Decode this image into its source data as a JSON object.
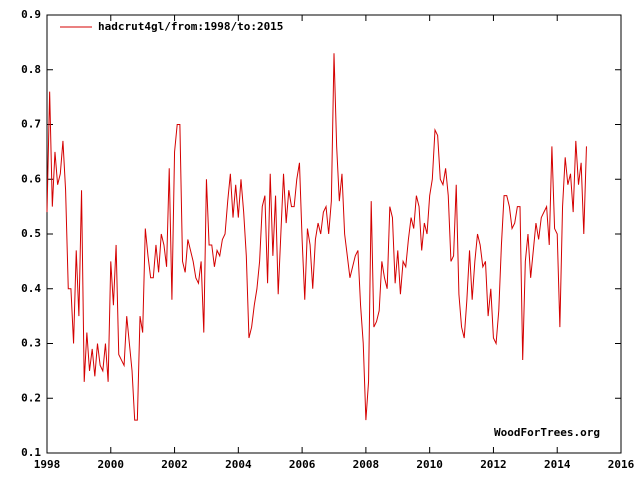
{
  "chart_data": {
    "type": "line",
    "legend": "top-left",
    "annotation": "WoodForTrees.org",
    "xlim": [
      1998,
      2016
    ],
    "xticks": [
      1998,
      2000,
      2002,
      2004,
      2006,
      2008,
      2010,
      2012,
      2014,
      2016
    ],
    "ylim": [
      0.1,
      0.9
    ],
    "yticks": [
      0.1,
      0.2,
      0.3,
      0.4,
      0.5,
      0.6,
      0.7,
      0.8,
      0.9
    ],
    "x": [
      1998,
      1998.083,
      1998.167,
      1998.25,
      1998.333,
      1998.417,
      1998.5,
      1998.583,
      1998.667,
      1998.75,
      1998.833,
      1998.917,
      1999,
      1999.083,
      1999.167,
      1999.25,
      1999.333,
      1999.417,
      1999.5,
      1999.583,
      1999.667,
      1999.75,
      1999.833,
      1999.917,
      2000,
      2000.083,
      2000.167,
      2000.25,
      2000.333,
      2000.417,
      2000.5,
      2000.583,
      2000.667,
      2000.75,
      2000.833,
      2000.917,
      2001,
      2001.083,
      2001.167,
      2001.25,
      2001.333,
      2001.417,
      2001.5,
      2001.583,
      2001.667,
      2001.75,
      2001.833,
      2001.917,
      2002,
      2002.083,
      2002.167,
      2002.25,
      2002.333,
      2002.417,
      2002.5,
      2002.583,
      2002.667,
      2002.75,
      2002.833,
      2002.917,
      2003,
      2003.083,
      2003.167,
      2003.25,
      2003.333,
      2003.417,
      2003.5,
      2003.583,
      2003.667,
      2003.75,
      2003.833,
      2003.917,
      2004,
      2004.083,
      2004.167,
      2004.25,
      2004.333,
      2004.417,
      2004.5,
      2004.583,
      2004.667,
      2004.75,
      2004.833,
      2004.917,
      2005,
      2005.083,
      2005.167,
      2005.25,
      2005.333,
      2005.417,
      2005.5,
      2005.583,
      2005.667,
      2005.75,
      2005.833,
      2005.917,
      2006,
      2006.083,
      2006.167,
      2006.25,
      2006.333,
      2006.417,
      2006.5,
      2006.583,
      2006.667,
      2006.75,
      2006.833,
      2006.917,
      2007,
      2007.083,
      2007.167,
      2007.25,
      2007.333,
      2007.417,
      2007.5,
      2007.583,
      2007.667,
      2007.75,
      2007.833,
      2007.917,
      2008,
      2008.083,
      2008.167,
      2008.25,
      2008.333,
      2008.417,
      2008.5,
      2008.583,
      2008.667,
      2008.75,
      2008.833,
      2008.917,
      2009,
      2009.083,
      2009.167,
      2009.25,
      2009.333,
      2009.417,
      2009.5,
      2009.583,
      2009.667,
      2009.75,
      2009.833,
      2009.917,
      2010,
      2010.083,
      2010.167,
      2010.25,
      2010.333,
      2010.417,
      2010.5,
      2010.583,
      2010.667,
      2010.75,
      2010.833,
      2010.917,
      2011,
      2011.083,
      2011.167,
      2011.25,
      2011.333,
      2011.417,
      2011.5,
      2011.583,
      2011.667,
      2011.75,
      2011.833,
      2011.917,
      2012,
      2012.083,
      2012.167,
      2012.25,
      2012.333,
      2012.417,
      2012.5,
      2012.583,
      2012.667,
      2012.75,
      2012.833,
      2012.917,
      2013,
      2013.083,
      2013.167,
      2013.25,
      2013.333,
      2013.417,
      2013.5,
      2013.583,
      2013.667,
      2013.75,
      2013.833,
      2013.917,
      2014,
      2014.083,
      2014.167,
      2014.25,
      2014.333,
      2014.417,
      2014.5,
      2014.583,
      2014.667,
      2014.75,
      2014.833,
      2014.917
    ],
    "series": [
      {
        "name": "hadcrut4gl/from:1998/to:2015",
        "color": "#d40000",
        "values": [
          0.54,
          0.76,
          0.55,
          0.65,
          0.59,
          0.61,
          0.67,
          0.58,
          0.4,
          0.4,
          0.3,
          0.47,
          0.35,
          0.58,
          0.23,
          0.32,
          0.25,
          0.29,
          0.24,
          0.3,
          0.26,
          0.25,
          0.3,
          0.23,
          0.45,
          0.37,
          0.48,
          0.28,
          0.27,
          0.26,
          0.35,
          0.3,
          0.25,
          0.16,
          0.16,
          0.35,
          0.32,
          0.51,
          0.46,
          0.42,
          0.42,
          0.48,
          0.43,
          0.5,
          0.48,
          0.44,
          0.62,
          0.38,
          0.65,
          0.7,
          0.7,
          0.45,
          0.43,
          0.49,
          0.47,
          0.45,
          0.42,
          0.41,
          0.45,
          0.32,
          0.6,
          0.48,
          0.48,
          0.44,
          0.47,
          0.46,
          0.49,
          0.5,
          0.56,
          0.61,
          0.53,
          0.59,
          0.53,
          0.6,
          0.54,
          0.46,
          0.31,
          0.33,
          0.37,
          0.4,
          0.45,
          0.55,
          0.57,
          0.41,
          0.61,
          0.46,
          0.57,
          0.39,
          0.5,
          0.61,
          0.52,
          0.58,
          0.55,
          0.55,
          0.6,
          0.63,
          0.49,
          0.38,
          0.51,
          0.48,
          0.4,
          0.49,
          0.52,
          0.5,
          0.54,
          0.55,
          0.5,
          0.56,
          0.83,
          0.66,
          0.56,
          0.61,
          0.5,
          0.46,
          0.42,
          0.44,
          0.46,
          0.47,
          0.37,
          0.3,
          0.16,
          0.23,
          0.56,
          0.33,
          0.34,
          0.36,
          0.45,
          0.42,
          0.4,
          0.55,
          0.53,
          0.41,
          0.47,
          0.39,
          0.45,
          0.44,
          0.49,
          0.53,
          0.51,
          0.57,
          0.55,
          0.47,
          0.52,
          0.5,
          0.57,
          0.6,
          0.69,
          0.68,
          0.6,
          0.59,
          0.62,
          0.57,
          0.45,
          0.46,
          0.59,
          0.39,
          0.33,
          0.31,
          0.38,
          0.47,
          0.38,
          0.45,
          0.5,
          0.48,
          0.44,
          0.45,
          0.35,
          0.4,
          0.31,
          0.3,
          0.36,
          0.48,
          0.57,
          0.57,
          0.55,
          0.51,
          0.52,
          0.55,
          0.55,
          0.27,
          0.45,
          0.5,
          0.42,
          0.47,
          0.52,
          0.49,
          0.53,
          0.54,
          0.55,
          0.48,
          0.66,
          0.51,
          0.5,
          0.33,
          0.55,
          0.64,
          0.59,
          0.61,
          0.54,
          0.67,
          0.59,
          0.63,
          0.5,
          0.66
        ]
      }
    ]
  }
}
